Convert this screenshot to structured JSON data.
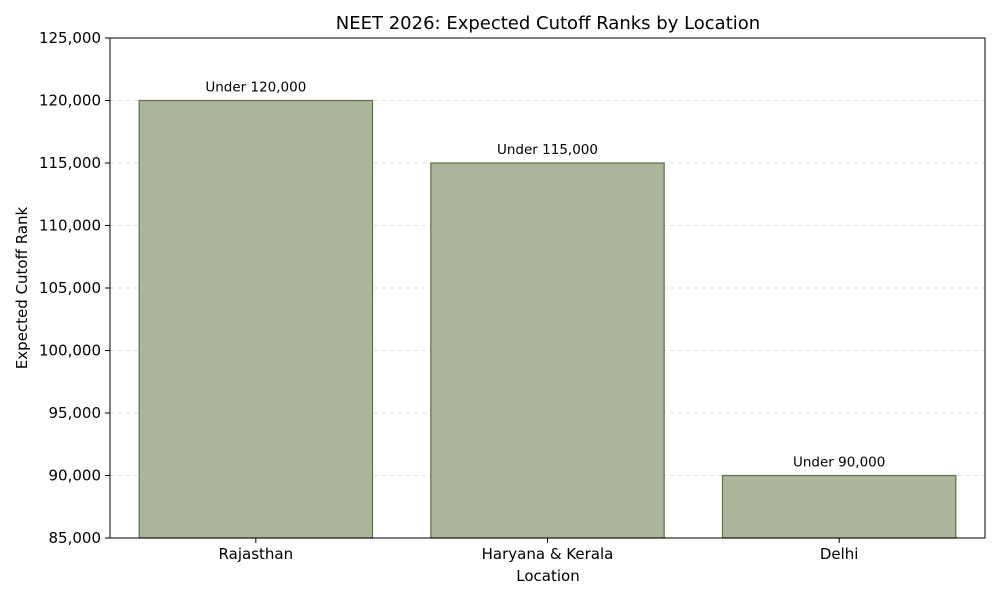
{
  "chart_data": {
    "type": "bar",
    "title": "NEET 2026: Expected Cutoff Ranks by Location",
    "xlabel": "Location",
    "ylabel": "Expected Cutoff Rank",
    "categories": [
      "Rajasthan",
      "Haryana & Kerala",
      "Delhi"
    ],
    "values": [
      120000,
      115000,
      90000
    ],
    "data_labels": [
      "Under 120,000",
      "Under 115,000",
      "Under 90,000"
    ],
    "ylim": [
      85000,
      125000
    ],
    "yticks": [
      85000,
      90000,
      95000,
      100000,
      105000,
      110000,
      115000,
      120000,
      125000
    ],
    "ytick_labels": [
      "85,000",
      "90,000",
      "95,000",
      "100,000",
      "105,000",
      "110,000",
      "115,000",
      "120,000",
      "125,000"
    ],
    "grid": "horizontal-dashed",
    "legend": "none",
    "colors": {
      "bar_fill": "#aab59c",
      "bar_edge": "#5f7045"
    }
  }
}
